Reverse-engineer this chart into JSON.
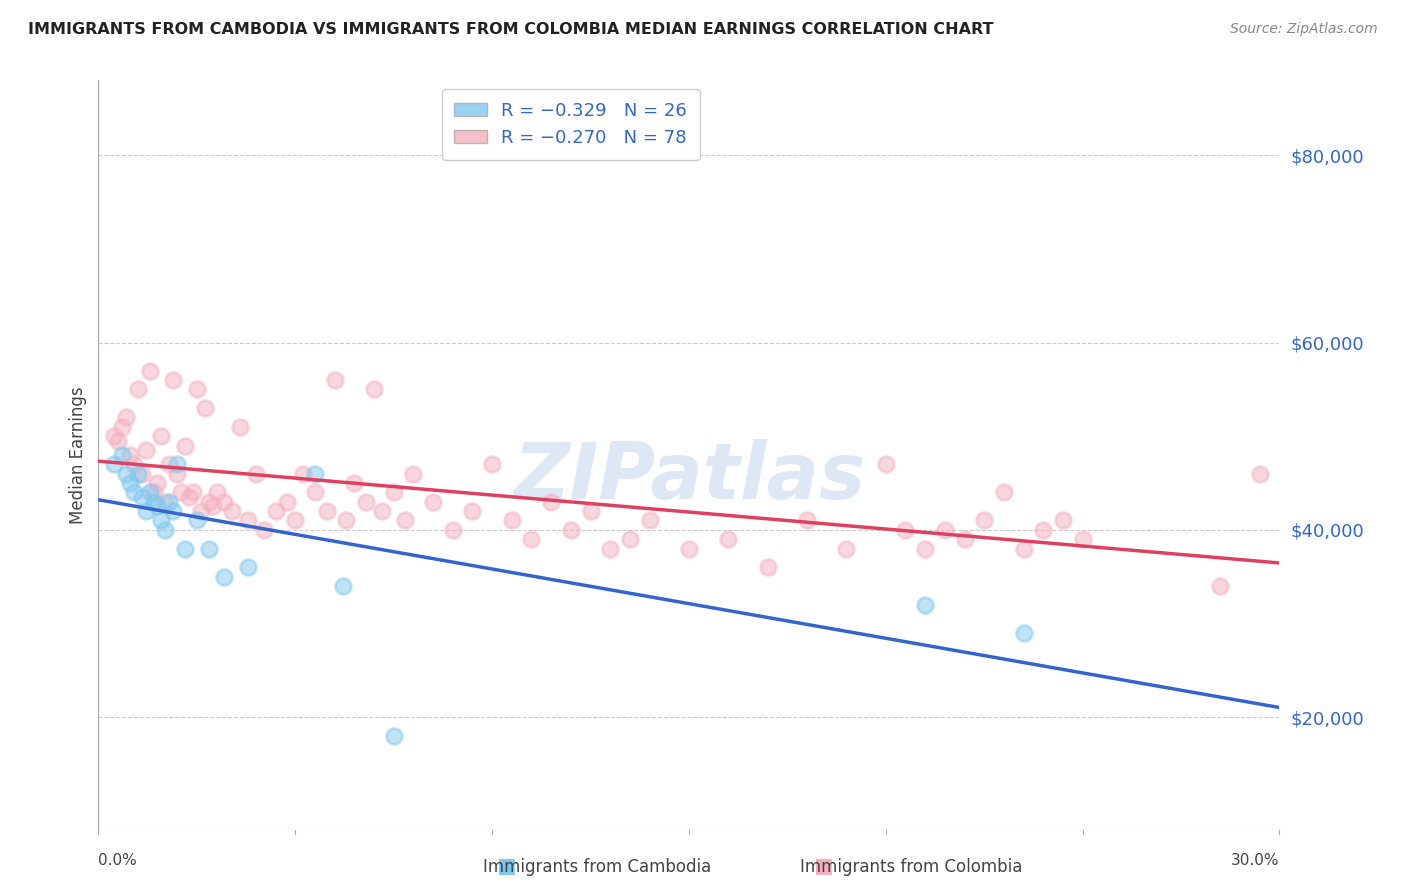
{
  "title": "IMMIGRANTS FROM CAMBODIA VS IMMIGRANTS FROM COLOMBIA MEDIAN EARNINGS CORRELATION CHART",
  "source": "Source: ZipAtlas.com",
  "ylabel": "Median Earnings",
  "yticks": [
    20000,
    40000,
    60000,
    80000
  ],
  "ytick_labels": [
    "$20,000",
    "$40,000",
    "$60,000",
    "$80,000"
  ],
  "xmin": 0.0,
  "xmax": 0.3,
  "ymin": 8000,
  "ymax": 88000,
  "legend_cambodia": "R = −0.329   N = 26",
  "legend_colombia": "R = −0.270   N = 78",
  "legend_label_cambodia": "Immigrants from Cambodia",
  "legend_label_colombia": "Immigrants from Colombia",
  "color_cambodia": "#7ec8f0",
  "color_colombia": "#f5b0c0",
  "trendline_color_cambodia": "#3366cc",
  "trendline_color_colombia": "#e04060",
  "watermark": "ZIPatlas",
  "watermark_color": "#c8d8f0",
  "cambodia_x": [
    0.004,
    0.006,
    0.007,
    0.008,
    0.009,
    0.01,
    0.011,
    0.012,
    0.013,
    0.014,
    0.015,
    0.016,
    0.017,
    0.018,
    0.019,
    0.02,
    0.022,
    0.025,
    0.028,
    0.032,
    0.038,
    0.055,
    0.062,
    0.075,
    0.21,
    0.235
  ],
  "cambodia_y": [
    47000,
    48000,
    46000,
    45000,
    44000,
    46000,
    43500,
    42000,
    44000,
    43000,
    42500,
    41000,
    40000,
    43000,
    42000,
    47000,
    38000,
    41000,
    38000,
    35000,
    36000,
    46000,
    34000,
    18000,
    32000,
    29000
  ],
  "colombia_x": [
    0.004,
    0.005,
    0.006,
    0.007,
    0.008,
    0.009,
    0.01,
    0.011,
    0.012,
    0.013,
    0.014,
    0.015,
    0.016,
    0.017,
    0.018,
    0.019,
    0.02,
    0.021,
    0.022,
    0.023,
    0.024,
    0.025,
    0.026,
    0.027,
    0.028,
    0.029,
    0.03,
    0.032,
    0.034,
    0.036,
    0.038,
    0.04,
    0.042,
    0.045,
    0.048,
    0.05,
    0.052,
    0.055,
    0.058,
    0.06,
    0.063,
    0.065,
    0.068,
    0.07,
    0.072,
    0.075,
    0.078,
    0.08,
    0.085,
    0.09,
    0.095,
    0.1,
    0.105,
    0.11,
    0.115,
    0.12,
    0.125,
    0.13,
    0.135,
    0.14,
    0.15,
    0.16,
    0.17,
    0.18,
    0.19,
    0.2,
    0.205,
    0.21,
    0.215,
    0.22,
    0.225,
    0.23,
    0.235,
    0.24,
    0.245,
    0.25,
    0.285,
    0.295
  ],
  "colombia_y": [
    50000,
    49500,
    51000,
    52000,
    48000,
    47000,
    55000,
    46000,
    48500,
    57000,
    44000,
    45000,
    50000,
    43000,
    47000,
    56000,
    46000,
    44000,
    49000,
    43500,
    44000,
    55000,
    42000,
    53000,
    43000,
    42500,
    44000,
    43000,
    42000,
    51000,
    41000,
    46000,
    40000,
    42000,
    43000,
    41000,
    46000,
    44000,
    42000,
    56000,
    41000,
    45000,
    43000,
    55000,
    42000,
    44000,
    41000,
    46000,
    43000,
    40000,
    42000,
    47000,
    41000,
    39000,
    43000,
    40000,
    42000,
    38000,
    39000,
    41000,
    38000,
    39000,
    36000,
    41000,
    38000,
    47000,
    40000,
    38000,
    40000,
    39000,
    41000,
    44000,
    38000,
    40000,
    41000,
    39000,
    34000,
    46000
  ]
}
